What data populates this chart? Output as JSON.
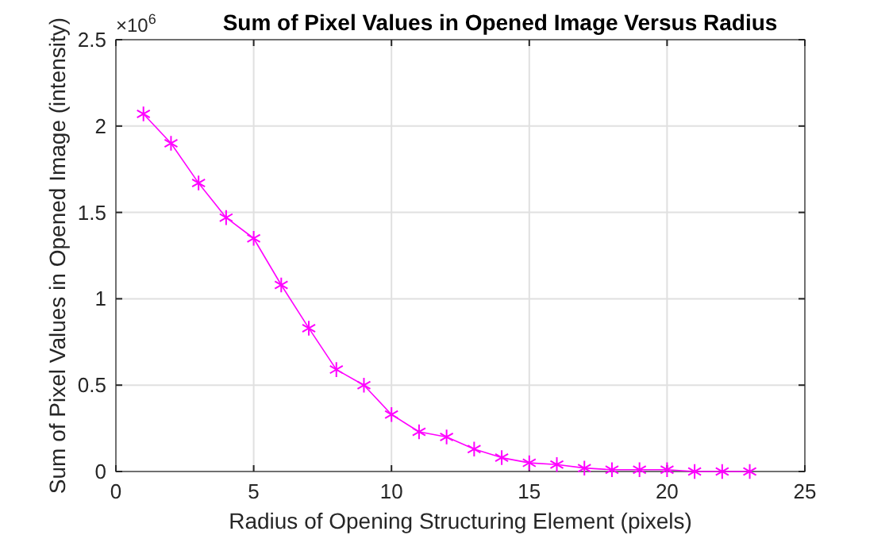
{
  "chart_data": {
    "type": "line",
    "title": "Sum of Pixel Values in Opened Image Versus Radius",
    "xlabel": "Radius of Opening Structuring Element (pixels)",
    "ylabel": "Sum of Pixel Values in Opened Image (intensity)",
    "annotations": [
      "×10$^{6}$"
    ],
    "x": [
      1,
      2,
      3,
      4,
      5,
      6,
      7,
      8,
      9,
      10,
      11,
      12,
      13,
      14,
      15,
      16,
      17,
      18,
      19,
      20,
      21,
      22,
      23
    ],
    "series": [
      {
        "color": "#ff00ff",
        "values": [
          2.07,
          1.9,
          1.67,
          1.47,
          1.35,
          1.08,
          0.83,
          0.59,
          0.5,
          0.33,
          0.23,
          0.2,
          0.13,
          0.08,
          0.05,
          0.04,
          0.02,
          0.01,
          0.01,
          0.01,
          0,
          0,
          0
        ]
      }
    ],
    "xlim": [
      0,
      25
    ],
    "xticks": [
      0,
      5,
      10,
      15,
      20,
      25
    ],
    "ylim": [
      0,
      2.5
    ],
    "yticks": [
      0,
      0.5,
      1,
      1.5,
      2,
      2.5
    ],
    "grid": true,
    "marker": "cross",
    "line_style": "solid"
  }
}
